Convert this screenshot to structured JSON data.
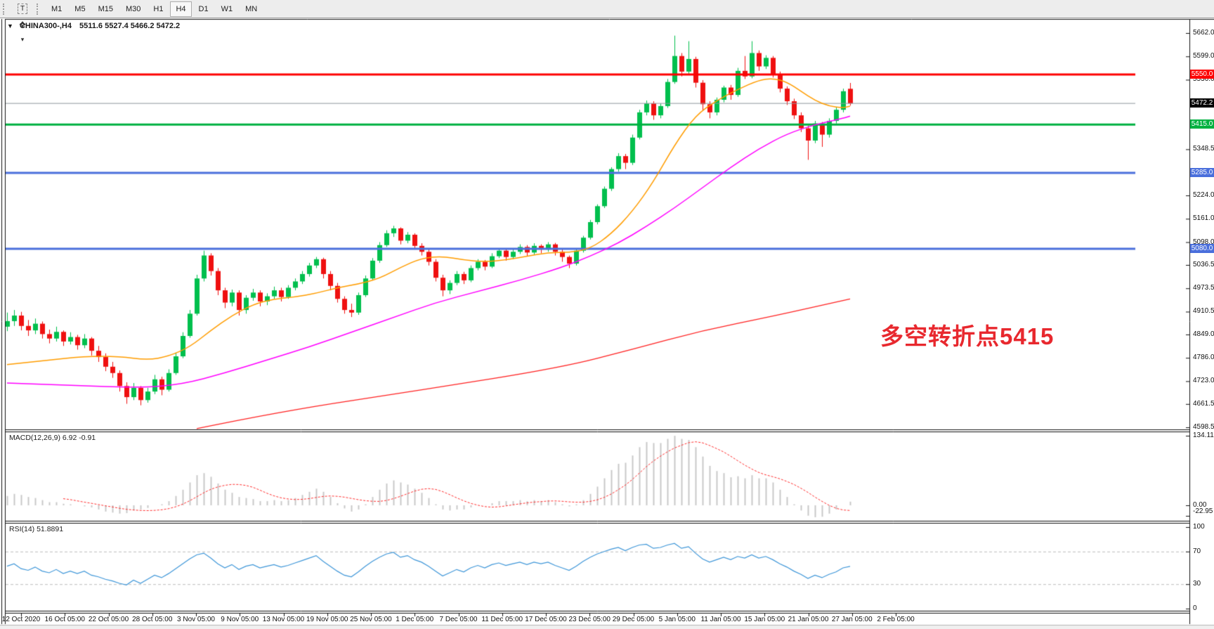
{
  "toolbar": {
    "tool_icons": [
      {
        "name": "grid-snap-icon",
        "label": "F"
      },
      {
        "name": "text-a-icon",
        "label": "A"
      },
      {
        "name": "text-box-icon",
        "label": "T"
      },
      {
        "name": "cycle-arrows-icon",
        "label": "❖"
      },
      {
        "name": "dropdown-caret-icon",
        "label": "▾"
      }
    ],
    "timeframes": [
      "M1",
      "M5",
      "M15",
      "M30",
      "H1",
      "H4",
      "D1",
      "W1",
      "MN"
    ],
    "active_timeframe": "H4"
  },
  "title": {
    "dropdown_icon": "▼",
    "symbol": "CHINA300-,H4",
    "ohlc": "5511.6 5527.4 5466.2 5472.2"
  },
  "annotation": {
    "text": "多空转折点5415",
    "color": "#e8282e"
  },
  "price_axis": {
    "ticks": [
      5662.0,
      5599.0,
      5536.0,
      5348.5,
      5224.0,
      5161.0,
      5098.0,
      5036.5,
      4973.5,
      4910.5,
      4849.0,
      4786.0,
      4723.0,
      4661.5,
      4598.5
    ]
  },
  "levels": [
    {
      "label": "5550.0",
      "price": 5550.0,
      "color": "#fe0000",
      "bg": "#fe0000",
      "width": 3
    },
    {
      "label": "5472.2",
      "price": 5472.2,
      "color": "#8f969c",
      "bg": "#000000",
      "width": 1
    },
    {
      "label": "5415.0",
      "price": 5415.0,
      "color": "#00b140",
      "bg": "#00b140",
      "width": 3
    },
    {
      "label": "5285.0",
      "price": 5285.0,
      "color": "#4a6fdc",
      "bg": "#4a6fdc",
      "width": 3
    },
    {
      "label": "5080.0",
      "price": 5080.0,
      "color": "#4a6fdc",
      "bg": "#4a6fdc",
      "width": 3
    }
  ],
  "time_axis": {
    "labels": [
      "12 Oct 2020",
      "16 Oct 05:00",
      "22 Oct 05:00",
      "28 Oct 05:00",
      "3 Nov 05:00",
      "9 Nov 05:00",
      "13 Nov 05:00",
      "19 Nov 05:00",
      "25 Nov 05:00",
      "1 Dec 05:00",
      "7 Dec 05:00",
      "11 Dec 05:00",
      "17 Dec 05:00",
      "23 Dec 05:00",
      "29 Dec 05:00",
      "5 Jan 05:00",
      "11 Jan 05:00",
      "15 Jan 05:00",
      "21 Jan 05:00",
      "27 Jan 05:00",
      "2 Feb 05:00"
    ]
  },
  "indicators": {
    "macd": {
      "label": "MACD(12,26,9) 6.92 -0.91",
      "scale_labels": [
        {
          "text": "134.11",
          "v": 134.11
        },
        {
          "text": "0.00",
          "v": 0
        },
        {
          "text": "-22.95",
          "v": -22.95
        }
      ]
    },
    "rsi": {
      "label": "RSI(14) 51.8891",
      "scale_labels": [
        {
          "text": "100",
          "v": 100
        },
        {
          "text": "70",
          "v": 70
        },
        {
          "text": "30",
          "v": 30
        },
        {
          "text": "0",
          "v": 0
        }
      ],
      "guides": [
        70,
        30
      ]
    }
  },
  "chart_data": {
    "type": "candlestick",
    "symbol": "CHINA300-",
    "timeframe": "H4",
    "title": "CHINA300-,H4",
    "current_bar": {
      "open": 5511.6,
      "high": 5527.4,
      "low": 5466.2,
      "close": 5472.2
    },
    "price_range": [
      4598.5,
      5662.0
    ],
    "colors": {
      "up": "#00bf4d",
      "down": "#ef1010",
      "ma_fast": "#ff9d00",
      "ma_medium": "#ff00ff",
      "ma_slow": "#ff2222",
      "macd_hist": "#c9c9c9",
      "macd_signal": "#ff3030",
      "rsi": "#3f97d9"
    },
    "candles": [
      [
        4870,
        4908,
        4858,
        4885
      ],
      [
        4885,
        4915,
        4872,
        4900
      ],
      [
        4900,
        4910,
        4860,
        4872
      ],
      [
        4872,
        4888,
        4845,
        4860
      ],
      [
        4860,
        4892,
        4850,
        4878
      ],
      [
        4878,
        4884,
        4838,
        4850
      ],
      [
        4850,
        4862,
        4825,
        4838
      ],
      [
        4838,
        4870,
        4830,
        4856
      ],
      [
        4856,
        4860,
        4818,
        4830
      ],
      [
        4830,
        4855,
        4822,
        4842
      ],
      [
        4842,
        4848,
        4808,
        4820
      ],
      [
        4820,
        4850,
        4812,
        4838
      ],
      [
        4838,
        4842,
        4792,
        4805
      ],
      [
        4805,
        4818,
        4775,
        4788
      ],
      [
        4788,
        4798,
        4750,
        4762
      ],
      [
        4762,
        4775,
        4732,
        4745
      ],
      [
        4745,
        4752,
        4695,
        4710
      ],
      [
        4710,
        4720,
        4662,
        4680
      ],
      [
        4680,
        4718,
        4672,
        4705
      ],
      [
        4705,
        4710,
        4658,
        4672
      ],
      [
        4672,
        4705,
        4665,
        4695
      ],
      [
        4695,
        4740,
        4688,
        4728
      ],
      [
        4728,
        4735,
        4685,
        4700
      ],
      [
        4700,
        4755,
        4695,
        4745
      ],
      [
        4745,
        4800,
        4740,
        4790
      ],
      [
        4790,
        4855,
        4785,
        4845
      ],
      [
        4845,
        4915,
        4840,
        4905
      ],
      [
        4905,
        5010,
        4900,
        5000
      ],
      [
        5000,
        5075,
        4992,
        5062
      ],
      [
        5062,
        5068,
        5008,
        5020
      ],
      [
        5020,
        5028,
        4955,
        4968
      ],
      [
        4968,
        4975,
        4920,
        4935
      ],
      [
        4935,
        4970,
        4925,
        4962
      ],
      [
        4962,
        4968,
        4900,
        4915
      ],
      [
        4915,
        4955,
        4905,
        4948
      ],
      [
        4948,
        4972,
        4940,
        4962
      ],
      [
        4962,
        4968,
        4925,
        4938
      ],
      [
        4938,
        4960,
        4928,
        4952
      ],
      [
        4952,
        4978,
        4945,
        4968
      ],
      [
        4968,
        4975,
        4938,
        4950
      ],
      [
        4950,
        4982,
        4945,
        4975
      ],
      [
        4975,
        5000,
        4968,
        4992
      ],
      [
        4992,
        5020,
        4985,
        5012
      ],
      [
        5012,
        5042,
        5005,
        5035
      ],
      [
        5035,
        5058,
        5028,
        5052
      ],
      [
        5052,
        5056,
        5000,
        5012
      ],
      [
        5012,
        5020,
        4968,
        4980
      ],
      [
        4980,
        4988,
        4935,
        4945
      ],
      [
        4945,
        4952,
        4905,
        4915
      ],
      [
        4915,
        4932,
        4896,
        4908
      ],
      [
        4908,
        4962,
        4902,
        4955
      ],
      [
        4955,
        5008,
        4950,
        5000
      ],
      [
        5000,
        5055,
        4995,
        5048
      ],
      [
        5048,
        5098,
        5042,
        5090
      ],
      [
        5090,
        5130,
        5085,
        5122
      ],
      [
        5122,
        5142,
        5112,
        5135
      ],
      [
        5135,
        5138,
        5092,
        5102
      ],
      [
        5102,
        5125,
        5095,
        5118
      ],
      [
        5118,
        5122,
        5078,
        5088
      ],
      [
        5088,
        5095,
        5062,
        5072
      ],
      [
        5072,
        5078,
        5035,
        5045
      ],
      [
        5045,
        5052,
        4992,
        5002
      ],
      [
        5002,
        5010,
        4952,
        4968
      ],
      [
        4968,
        4995,
        4958,
        4988
      ],
      [
        4988,
        5020,
        4982,
        5012
      ],
      [
        5012,
        5018,
        4985,
        4995
      ],
      [
        4995,
        5035,
        4990,
        5028
      ],
      [
        5028,
        5052,
        5022,
        5045
      ],
      [
        5045,
        5050,
        5022,
        5032
      ],
      [
        5032,
        5068,
        5028,
        5060
      ],
      [
        5060,
        5082,
        5055,
        5075
      ],
      [
        5075,
        5080,
        5048,
        5058
      ],
      [
        5058,
        5078,
        5052,
        5072
      ],
      [
        5072,
        5092,
        5066,
        5085
      ],
      [
        5085,
        5090,
        5060,
        5070
      ],
      [
        5070,
        5095,
        5065,
        5088
      ],
      [
        5088,
        5092,
        5068,
        5078
      ],
      [
        5078,
        5098,
        5072,
        5092
      ],
      [
        5092,
        5096,
        5062,
        5072
      ],
      [
        5072,
        5078,
        5045,
        5058
      ],
      [
        5058,
        5062,
        5028,
        5040
      ],
      [
        5040,
        5080,
        5035,
        5075
      ],
      [
        5075,
        5115,
        5070,
        5110
      ],
      [
        5110,
        5158,
        5105,
        5152
      ],
      [
        5152,
        5200,
        5146,
        5195
      ],
      [
        5195,
        5248,
        5190,
        5242
      ],
      [
        5242,
        5300,
        5236,
        5295
      ],
      [
        5295,
        5338,
        5288,
        5330
      ],
      [
        5330,
        5336,
        5295,
        5312
      ],
      [
        5312,
        5388,
        5306,
        5380
      ],
      [
        5380,
        5455,
        5375,
        5448
      ],
      [
        5448,
        5480,
        5440,
        5472
      ],
      [
        5472,
        5478,
        5428,
        5440
      ],
      [
        5440,
        5472,
        5432,
        5465
      ],
      [
        5465,
        5538,
        5460,
        5530
      ],
      [
        5530,
        5655,
        5525,
        5600
      ],
      [
        5600,
        5608,
        5545,
        5558
      ],
      [
        5558,
        5640,
        5550,
        5592
      ],
      [
        5592,
        5598,
        5515,
        5528
      ],
      [
        5528,
        5535,
        5452,
        5470
      ],
      [
        5470,
        5478,
        5432,
        5448
      ],
      [
        5448,
        5488,
        5440,
        5482
      ],
      [
        5482,
        5520,
        5475,
        5515
      ],
      [
        5515,
        5522,
        5482,
        5495
      ],
      [
        5495,
        5568,
        5490,
        5560
      ],
      [
        5560,
        5600,
        5538,
        5545
      ],
      [
        5545,
        5640,
        5540,
        5608
      ],
      [
        5608,
        5615,
        5560,
        5572
      ],
      [
        5572,
        5602,
        5565,
        5595
      ],
      [
        5595,
        5600,
        5542,
        5552
      ],
      [
        5552,
        5558,
        5502,
        5512
      ],
      [
        5512,
        5518,
        5468,
        5478
      ],
      [
        5478,
        5485,
        5430,
        5440
      ],
      [
        5440,
        5448,
        5395,
        5405
      ],
      [
        5405,
        5412,
        5320,
        5372
      ],
      [
        5372,
        5425,
        5365,
        5418
      ],
      [
        5418,
        5422,
        5355,
        5388
      ],
      [
        5388,
        5432,
        5380,
        5425
      ],
      [
        5425,
        5462,
        5418,
        5455
      ],
      [
        5455,
        5512,
        5448,
        5505
      ],
      [
        5511.6,
        5527.4,
        5466.2,
        5472.2
      ]
    ],
    "moving_averages": [
      {
        "name": "fast-ma",
        "color": "#ff9d00",
        "points": [
          [
            0,
            4768
          ],
          [
            5,
            4778
          ],
          [
            11,
            4790
          ],
          [
            16,
            4790
          ],
          [
            20,
            4780
          ],
          [
            23,
            4790
          ],
          [
            26,
            4815
          ],
          [
            29,
            4860
          ],
          [
            32,
            4900
          ],
          [
            35,
            4930
          ],
          [
            38,
            4945
          ],
          [
            41,
            4950
          ],
          [
            44,
            4960
          ],
          [
            47,
            4975
          ],
          [
            50,
            4985
          ],
          [
            53,
            5000
          ],
          [
            56,
            5030
          ],
          [
            59,
            5055
          ],
          [
            62,
            5060
          ],
          [
            65,
            5050
          ],
          [
            68,
            5045
          ],
          [
            71,
            5050
          ],
          [
            74,
            5060
          ],
          [
            77,
            5070
          ],
          [
            80,
            5070
          ],
          [
            83,
            5080
          ],
          [
            86,
            5120
          ],
          [
            89,
            5180
          ],
          [
            92,
            5260
          ],
          [
            95,
            5360
          ],
          [
            98,
            5440
          ],
          [
            101,
            5480
          ],
          [
            104,
            5510
          ],
          [
            107,
            5535
          ],
          [
            109,
            5540
          ],
          [
            111,
            5530
          ],
          [
            113,
            5505
          ],
          [
            115,
            5480
          ],
          [
            117,
            5465
          ],
          [
            119,
            5460
          ],
          [
            120,
            5465
          ]
        ]
      },
      {
        "name": "medium-ma",
        "color": "#ff00ff",
        "points": [
          [
            0,
            4718
          ],
          [
            9,
            4712
          ],
          [
            19,
            4705
          ],
          [
            25,
            4715
          ],
          [
            31,
            4745
          ],
          [
            37,
            4780
          ],
          [
            43,
            4815
          ],
          [
            49,
            4855
          ],
          [
            55,
            4895
          ],
          [
            61,
            4935
          ],
          [
            67,
            4965
          ],
          [
            73,
            4995
          ],
          [
            79,
            5030
          ],
          [
            83,
            5060
          ],
          [
            87,
            5095
          ],
          [
            91,
            5140
          ],
          [
            95,
            5190
          ],
          [
            99,
            5245
          ],
          [
            103,
            5300
          ],
          [
            107,
            5350
          ],
          [
            111,
            5390
          ],
          [
            115,
            5415
          ],
          [
            119,
            5432
          ],
          [
            120,
            5438
          ]
        ]
      },
      {
        "name": "slow-ma",
        "color": "#ff2222",
        "points": [
          [
            27,
            4595
          ],
          [
            39,
            4642
          ],
          [
            59,
            4699
          ],
          [
            79,
            4760
          ],
          [
            89,
            4809
          ],
          [
            99,
            4860
          ],
          [
            109,
            4898
          ],
          [
            120,
            4945
          ]
        ]
      }
    ],
    "macd_hist": [
      18,
      22,
      20,
      16,
      14,
      10,
      6,
      6,
      3,
      2,
      0,
      -2,
      -4,
      -8,
      -12,
      -14,
      -16,
      -15,
      -10,
      -8,
      -5,
      0,
      2,
      8,
      18,
      30,
      44,
      58,
      62,
      55,
      42,
      30,
      24,
      16,
      14,
      12,
      8,
      8,
      10,
      8,
      10,
      14,
      20,
      26,
      32,
      26,
      16,
      4,
      -6,
      -12,
      -8,
      2,
      16,
      30,
      42,
      48,
      44,
      40,
      32,
      24,
      14,
      2,
      -8,
      -10,
      -8,
      -8,
      -4,
      0,
      0,
      4,
      8,
      8,
      8,
      10,
      8,
      10,
      8,
      10,
      6,
      2,
      -2,
      2,
      10,
      22,
      36,
      52,
      68,
      80,
      82,
      96,
      112,
      122,
      120,
      120,
      128,
      134,
      128,
      126,
      112,
      94,
      76,
      66,
      62,
      54,
      56,
      52,
      58,
      52,
      52,
      44,
      30,
      16,
      2,
      -10,
      -20,
      -23,
      -22,
      -16,
      -8,
      0,
      7
    ],
    "macd_signal_period": 9,
    "macd_range": [
      -22.95,
      134.11
    ],
    "rsi_period": 14,
    "rsi_values": [
      52,
      55,
      49,
      47,
      51,
      46,
      44,
      48,
      43,
      46,
      43,
      46,
      41,
      39,
      36,
      34,
      31,
      29,
      35,
      31,
      36,
      41,
      38,
      43,
      49,
      55,
      61,
      66,
      68,
      62,
      55,
      50,
      54,
      48,
      52,
      54,
      50,
      52,
      54,
      51,
      53,
      56,
      59,
      62,
      65,
      58,
      52,
      46,
      41,
      39,
      45,
      52,
      58,
      63,
      67,
      69,
      63,
      65,
      60,
      57,
      52,
      46,
      40,
      44,
      48,
      45,
      50,
      53,
      50,
      54,
      56,
      53,
      55,
      57,
      54,
      57,
      55,
      57,
      53,
      50,
      47,
      52,
      58,
      63,
      67,
      70,
      73,
      75,
      71,
      75,
      78,
      79,
      74,
      75,
      78,
      80,
      74,
      76,
      68,
      61,
      57,
      60,
      63,
      60,
      64,
      62,
      66,
      62,
      64,
      60,
      55,
      51,
      46,
      42,
      37,
      41,
      38,
      42,
      45,
      50,
      51.89
    ],
    "x_labels": [
      "12 Oct 2020",
      "16 Oct 05:00",
      "22 Oct 05:00",
      "28 Oct 05:00",
      "3 Nov 05:00",
      "9 Nov 05:00",
      "13 Nov 05:00",
      "19 Nov 05:00",
      "25 Nov 05:00",
      "1 Dec 05:00",
      "7 Dec 05:00",
      "11 Dec 05:00",
      "17 Dec 05:00",
      "23 Dec 05:00",
      "29 Dec 05:00",
      "5 Jan 05:00",
      "11 Jan 05:00",
      "15 Jan 05:00",
      "21 Jan 05:00",
      "27 Jan 05:00",
      "2 Feb 05:00"
    ]
  }
}
